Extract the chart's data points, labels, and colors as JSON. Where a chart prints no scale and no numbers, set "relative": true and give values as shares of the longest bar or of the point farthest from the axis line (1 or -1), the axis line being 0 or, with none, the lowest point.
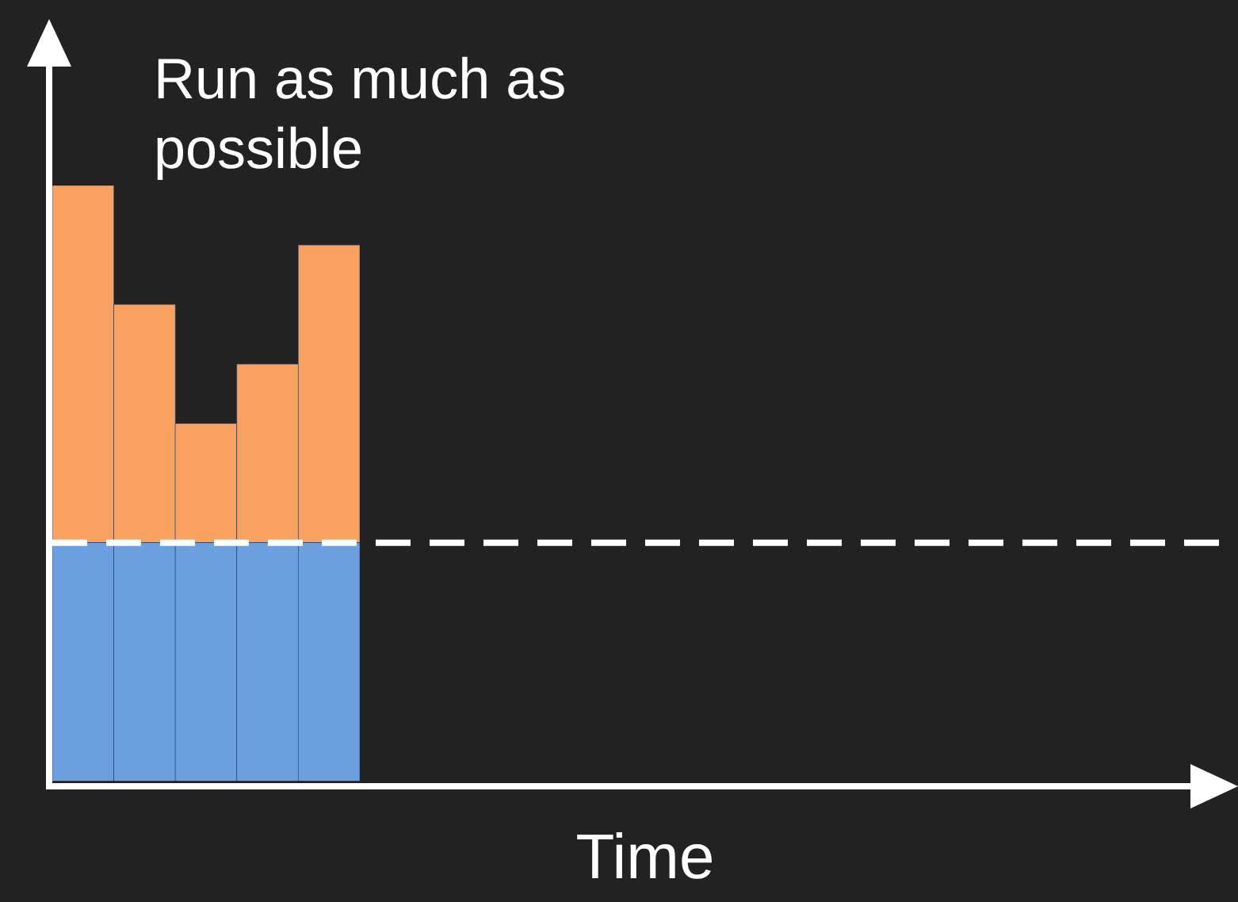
{
  "chart_data": {
    "type": "bar",
    "stacked": true,
    "relative": true,
    "xlabel": "Time",
    "annotations": [
      "Run as much as possible"
    ],
    "categories": [
      null,
      null,
      null,
      null,
      null
    ],
    "series": [
      {
        "color": "#6b9fe0",
        "values": [
          0.4,
          0.4,
          0.4,
          0.4,
          0.4
        ]
      },
      {
        "color": "#f9a160",
        "values": [
          0.6,
          0.4,
          0.2,
          0.3,
          0.5
        ]
      }
    ],
    "ref_lines": [
      {
        "axis": "y",
        "value": 0.4,
        "color": "#ffffff",
        "line_style": "dashed"
      }
    ],
    "grid": false,
    "legend": false
  }
}
